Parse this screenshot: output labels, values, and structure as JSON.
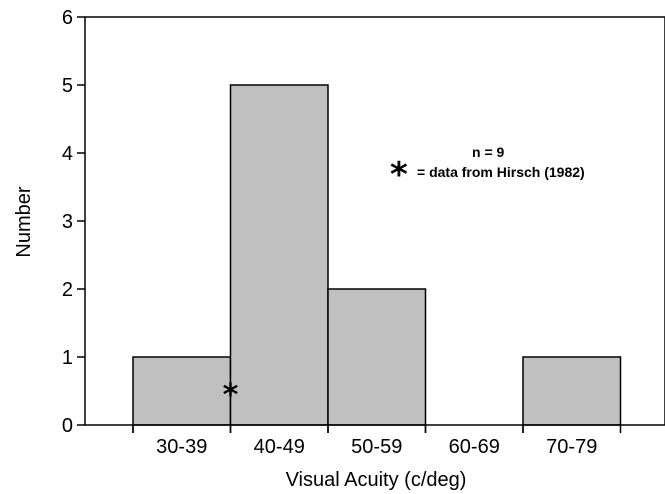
{
  "chart_data": {
    "type": "bar",
    "categories": [
      "30-39",
      "40-49",
      "50-59",
      "60-69",
      "70-79"
    ],
    "values": [
      1,
      5,
      2,
      0,
      1
    ],
    "xlabel": "Visual Acuity (c/deg)",
    "ylabel": "Number",
    "ylim": [
      0,
      6
    ],
    "yticks": [
      "0",
      "1",
      "2",
      "3",
      "4",
      "5",
      "6"
    ],
    "bar_color": "#c0c0c0",
    "bar_edge_color": "#000000",
    "grid": false,
    "marker": {
      "symbol": "*",
      "label": "= data from Hirsch (1982)",
      "x_value": 40,
      "y_value": 0.5
    },
    "annotations": [
      "n = 9"
    ]
  }
}
